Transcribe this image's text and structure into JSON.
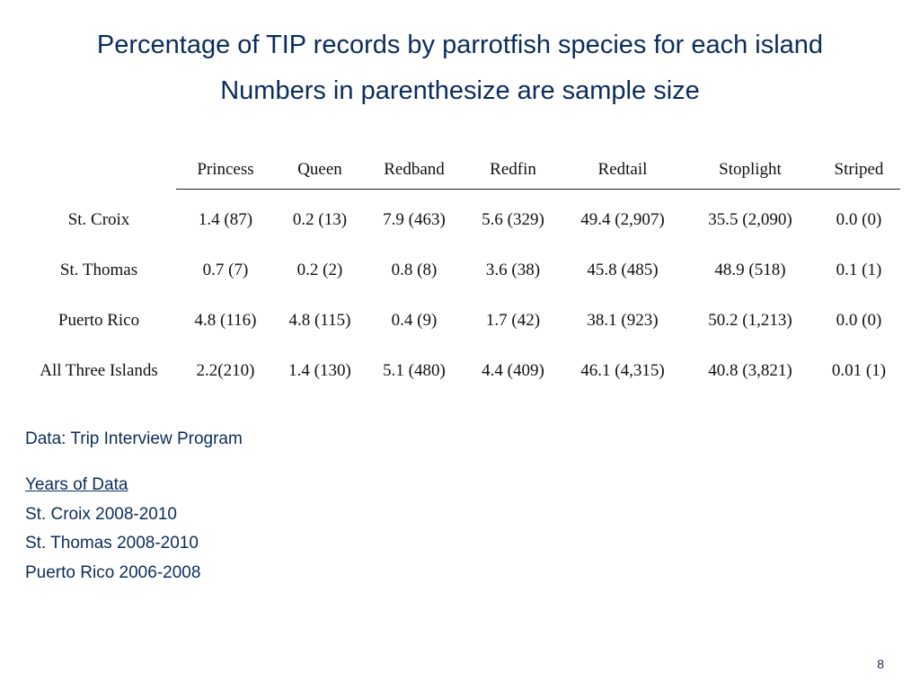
{
  "slide": {
    "title_line1": "Percentage of TIP records by parrotfish species for each island",
    "title_line2": "Numbers in parenthesize are sample size",
    "page_number": "8"
  },
  "table": {
    "columns": [
      "Princess",
      "Queen",
      "Redband",
      "Redfin",
      "Redtail",
      "Stoplight",
      "Striped"
    ],
    "rows": [
      {
        "label": "St. Croix",
        "cells": [
          "1.4 (87)",
          "0.2 (13)",
          "7.9 (463)",
          "5.6 (329)",
          "49.4 (2,907)",
          "35.5 (2,090)",
          "0.0 (0)"
        ]
      },
      {
        "label": "St. Thomas",
        "cells": [
          "0.7 (7)",
          "0.2 (2)",
          "0.8 (8)",
          "3.6 (38)",
          "45.8 (485)",
          "48.9 (518)",
          "0.1 (1)"
        ]
      },
      {
        "label": "Puerto Rico",
        "cells": [
          "4.8 (116)",
          "4.8 (115)",
          "0.4 (9)",
          "1.7 (42)",
          "38.1 (923)",
          "50.2 (1,213)",
          "0.0 (0)"
        ]
      },
      {
        "label": "All Three Islands",
        "cells": [
          "2.2(210)",
          "1.4 (130)",
          "5.1 (480)",
          "4.4 (409)",
          "46.1 (4,315)",
          "40.8 (3,821)",
          "0.01 (1)"
        ]
      }
    ]
  },
  "notes": {
    "source": "Data: Trip Interview Program",
    "years_heading": "Years of Data",
    "years": [
      "St. Croix 2008-2010",
      "St. Thomas 2008-2010",
      "Puerto Rico 2006-2008"
    ]
  }
}
